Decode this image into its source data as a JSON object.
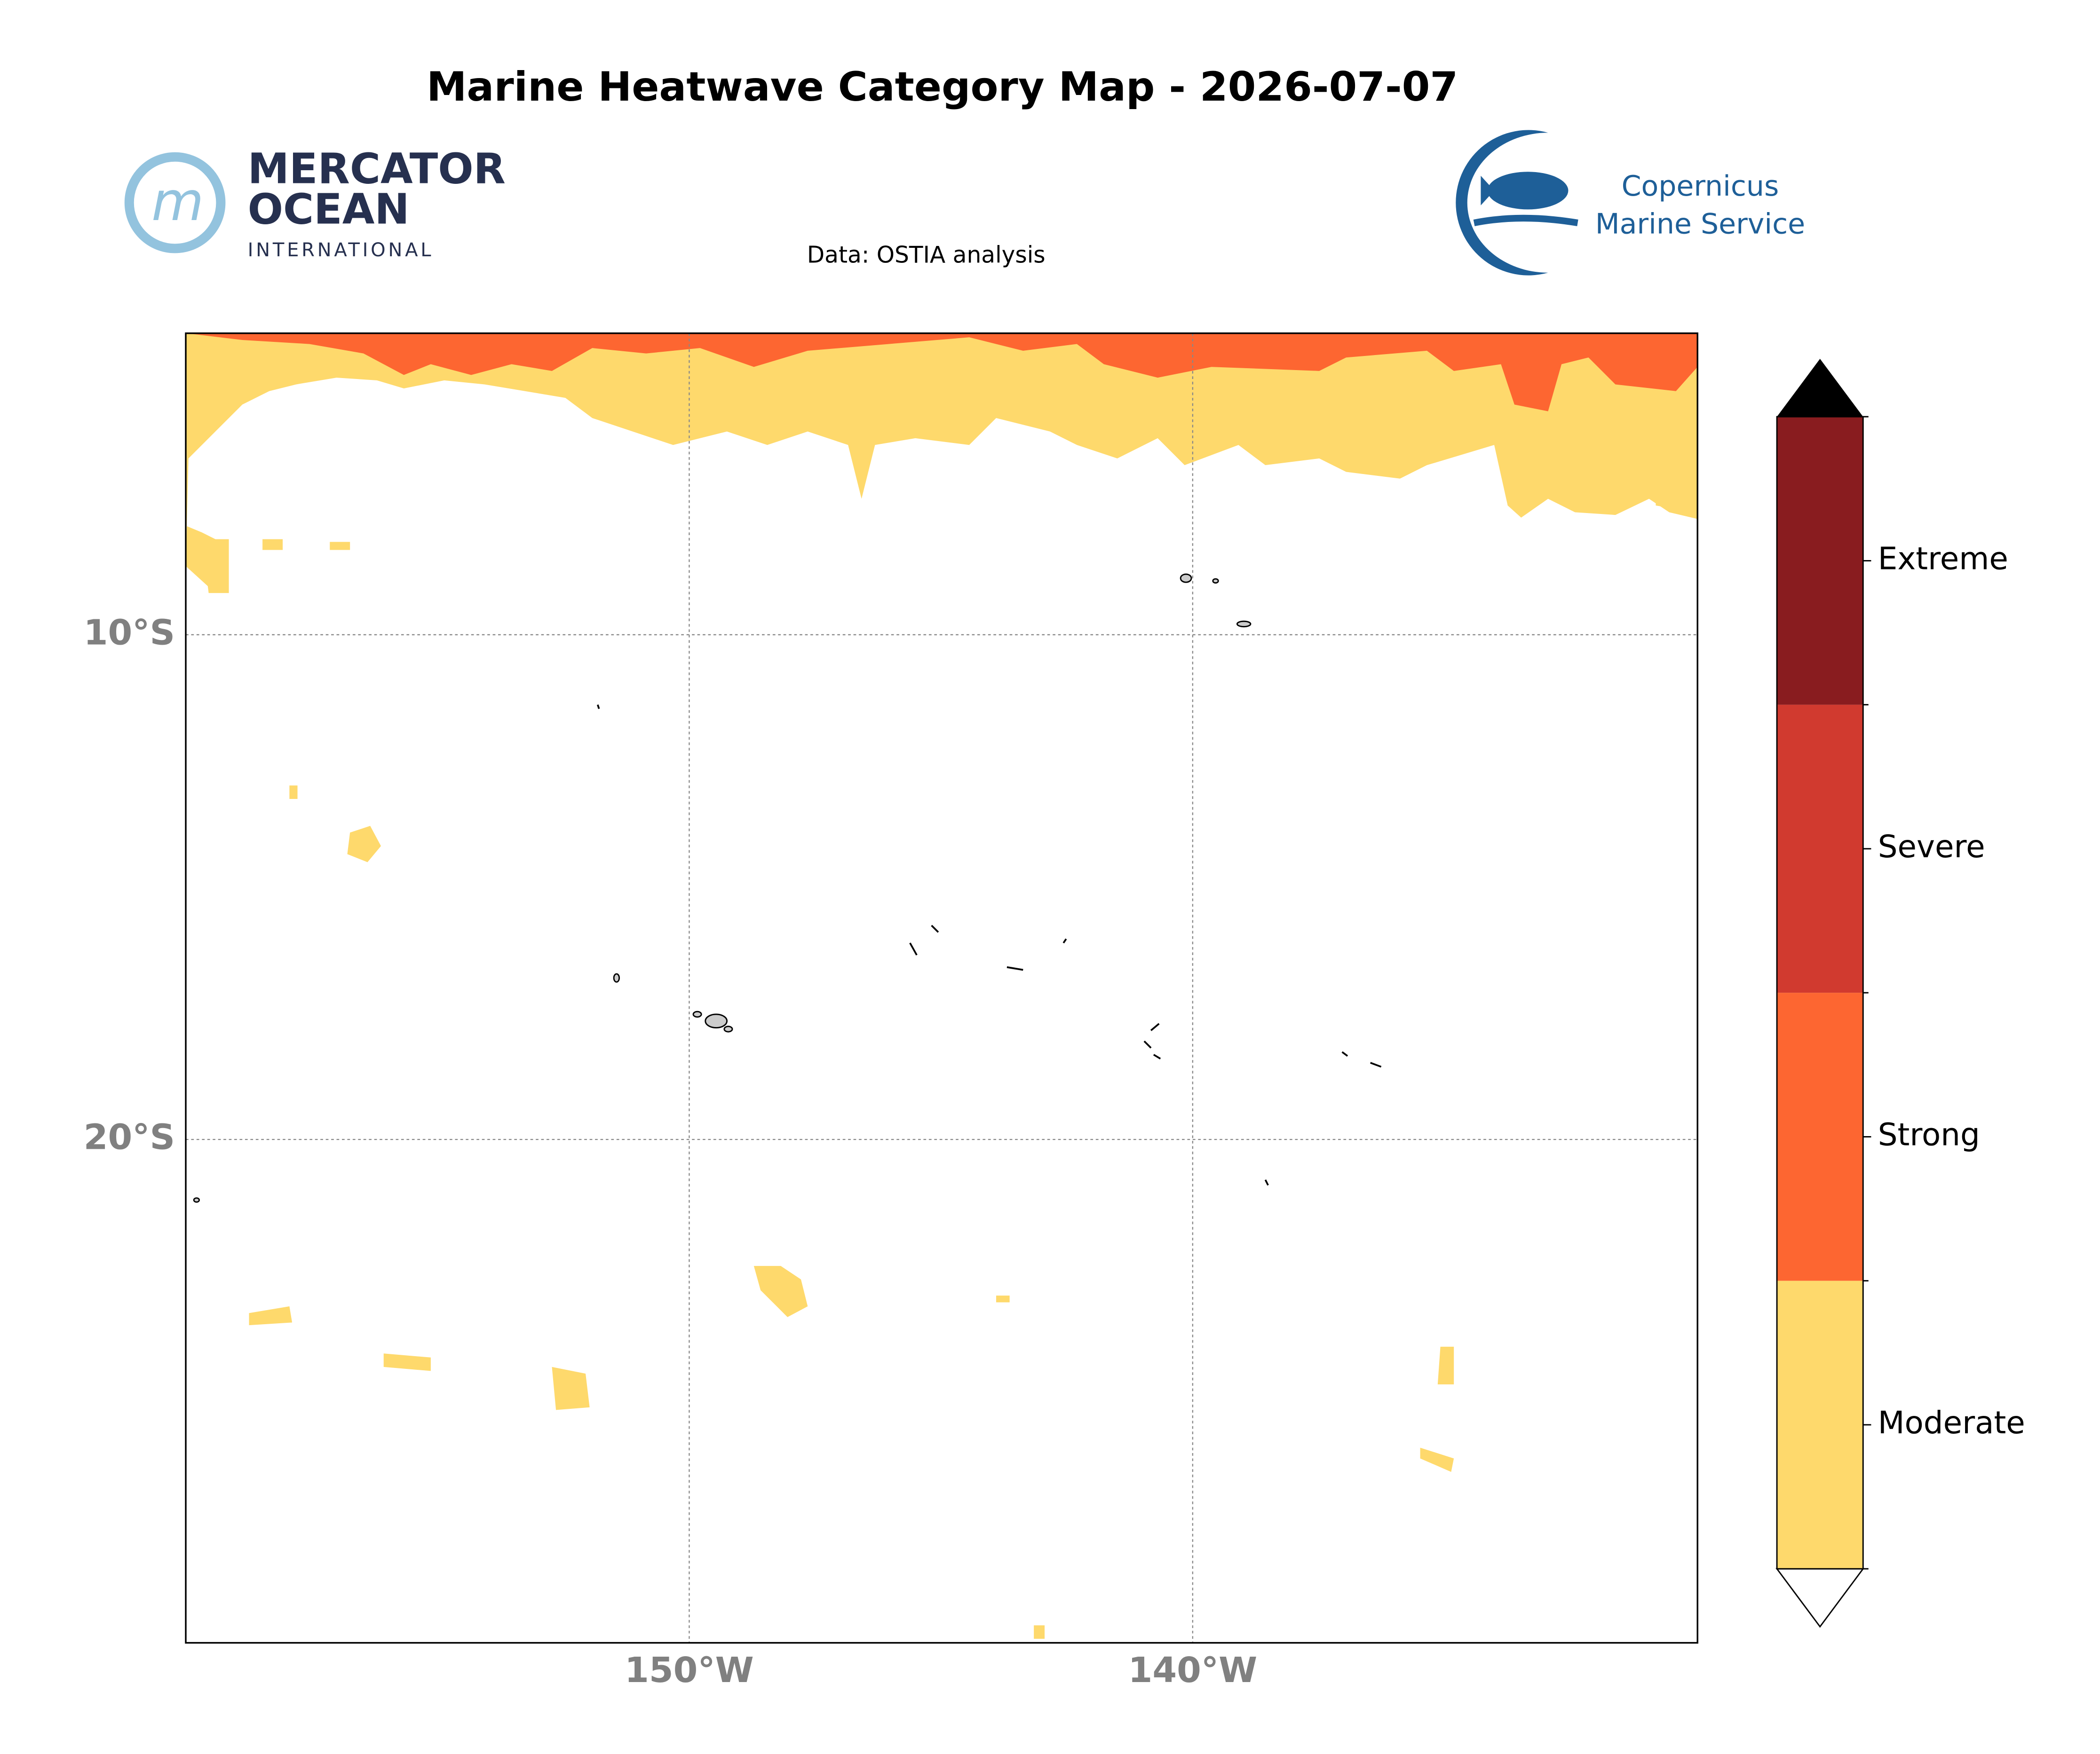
{
  "title": "Marine Heatwave Category Map - 2026-07-07",
  "source": "Data: OSTIA analysis",
  "logos": {
    "mercator": [
      "MERCATOR",
      "OCEAN",
      "INTERNATIONAL"
    ],
    "copernicus": [
      "Copernicus",
      "Marine Service"
    ]
  },
  "map": {
    "lat_labels": [
      "10°S",
      "20°S"
    ],
    "lon_labels": [
      "150°W",
      "140°W"
    ]
  },
  "legend": {
    "categories": [
      {
        "name": "Moderate",
        "color": "#fed96c"
      },
      {
        "name": "Strong",
        "color": "#fd6631"
      },
      {
        "name": "Severe",
        "color": "#d13a2f"
      },
      {
        "name": "Extreme",
        "color": "#891c1f"
      }
    ]
  }
}
